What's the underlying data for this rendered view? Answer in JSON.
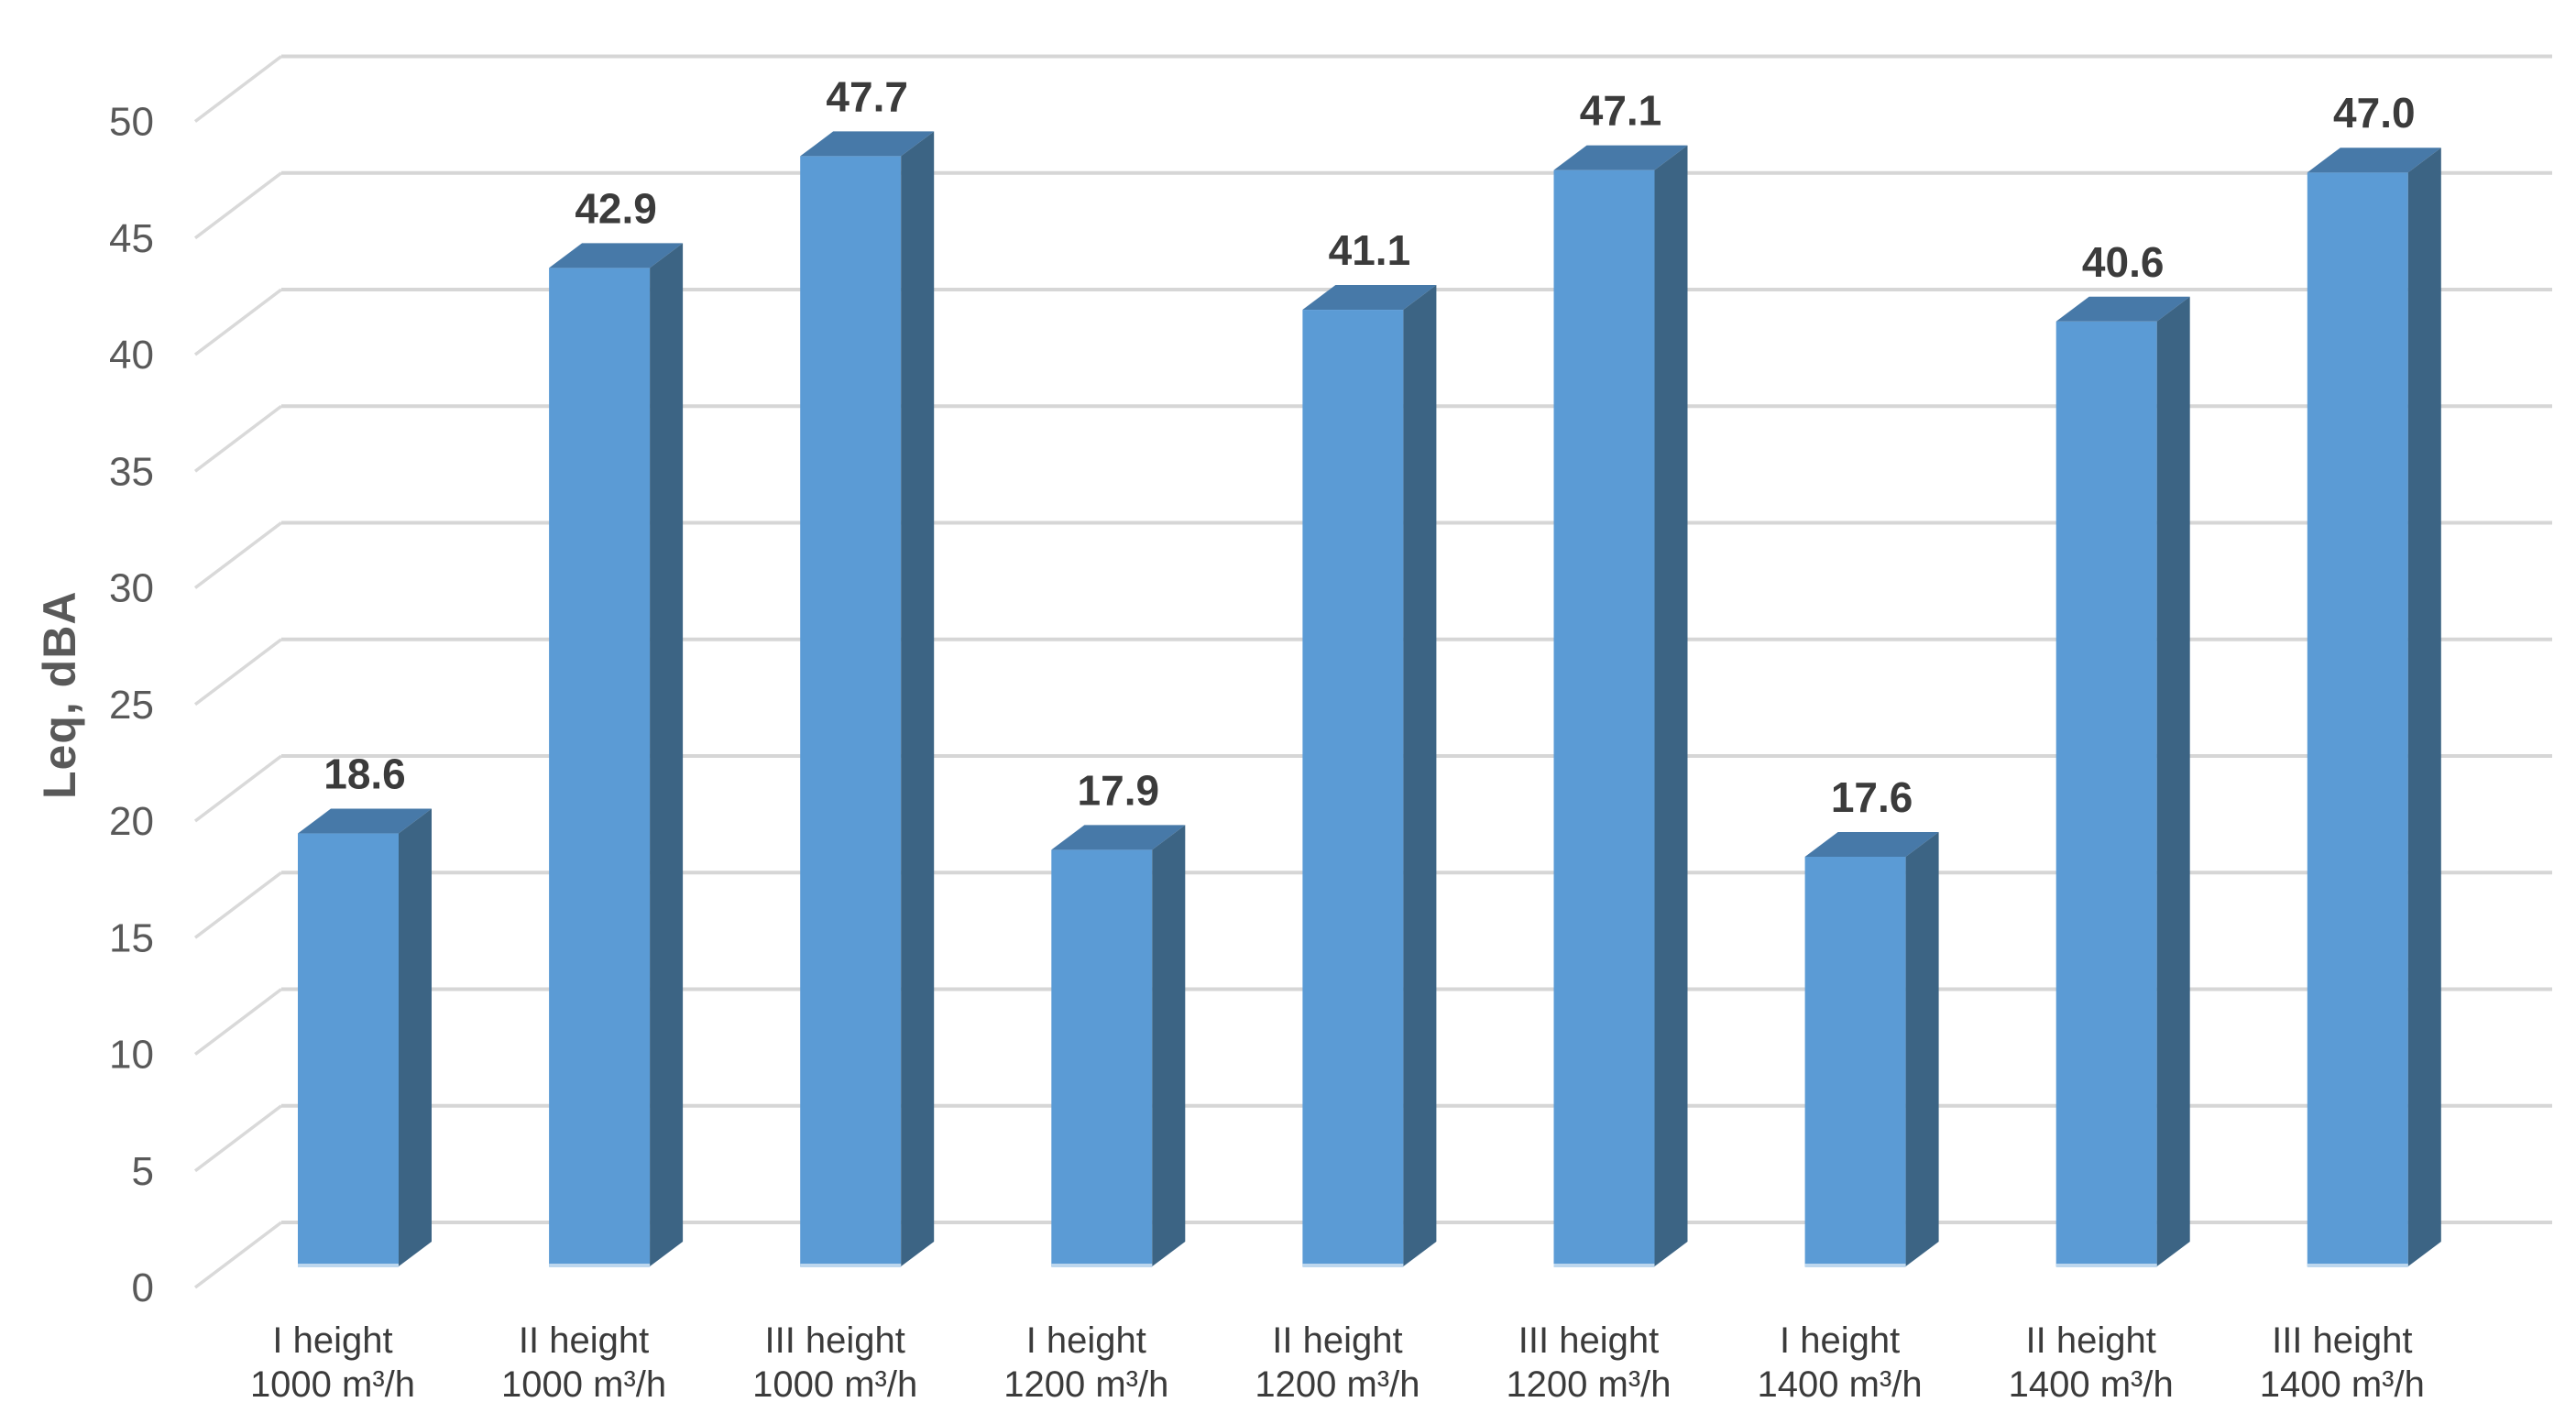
{
  "chart_data": {
    "type": "bar",
    "style": "3d-column-clustered",
    "title": "",
    "ylabel": "Leq, dBA",
    "xlabel": "",
    "ylim": [
      0,
      50
    ],
    "ytick_interval": 5,
    "yticks": [
      0,
      5,
      10,
      15,
      20,
      25,
      30,
      35,
      40,
      45,
      50
    ],
    "grid": true,
    "legend": false,
    "categories": [
      {
        "line1": "I height",
        "line2": "1000 m³/h"
      },
      {
        "line1": "II height",
        "line2": "1000 m³/h"
      },
      {
        "line1": "III height",
        "line2": "1000 m³/h"
      },
      {
        "line1": "I height",
        "line2": "1200 m³/h"
      },
      {
        "line1": "II height",
        "line2": "1200 m³/h"
      },
      {
        "line1": "III height",
        "line2": "1200 m³/h"
      },
      {
        "line1": "I height",
        "line2": "1400 m³/h"
      },
      {
        "line1": "II height",
        "line2": "1400 m³/h"
      },
      {
        "line1": "III height",
        "line2": "1400 m³/h"
      }
    ],
    "values": [
      18.6,
      42.9,
      47.7,
      17.9,
      41.1,
      47.1,
      17.6,
      40.6,
      47.0
    ],
    "data_labels": [
      "18.6",
      "42.9",
      "47.7",
      "17.9",
      "41.1",
      "47.1",
      "17.6",
      "40.6",
      "47.0"
    ],
    "colors": {
      "bar_front": "#5B9BD5",
      "bar_top": "#4779A8",
      "bar_side": "#3C6484",
      "bar_bottom_edge": "#BDD7EE",
      "gridline": "#D6D6D6",
      "depth_connector": "#D9D9D9",
      "tick_text": "#595959",
      "axis_title_text": "#595959",
      "data_label_text": "#3B3B3B",
      "category_text": "#3B3B3B",
      "background": "#FFFFFF"
    }
  }
}
